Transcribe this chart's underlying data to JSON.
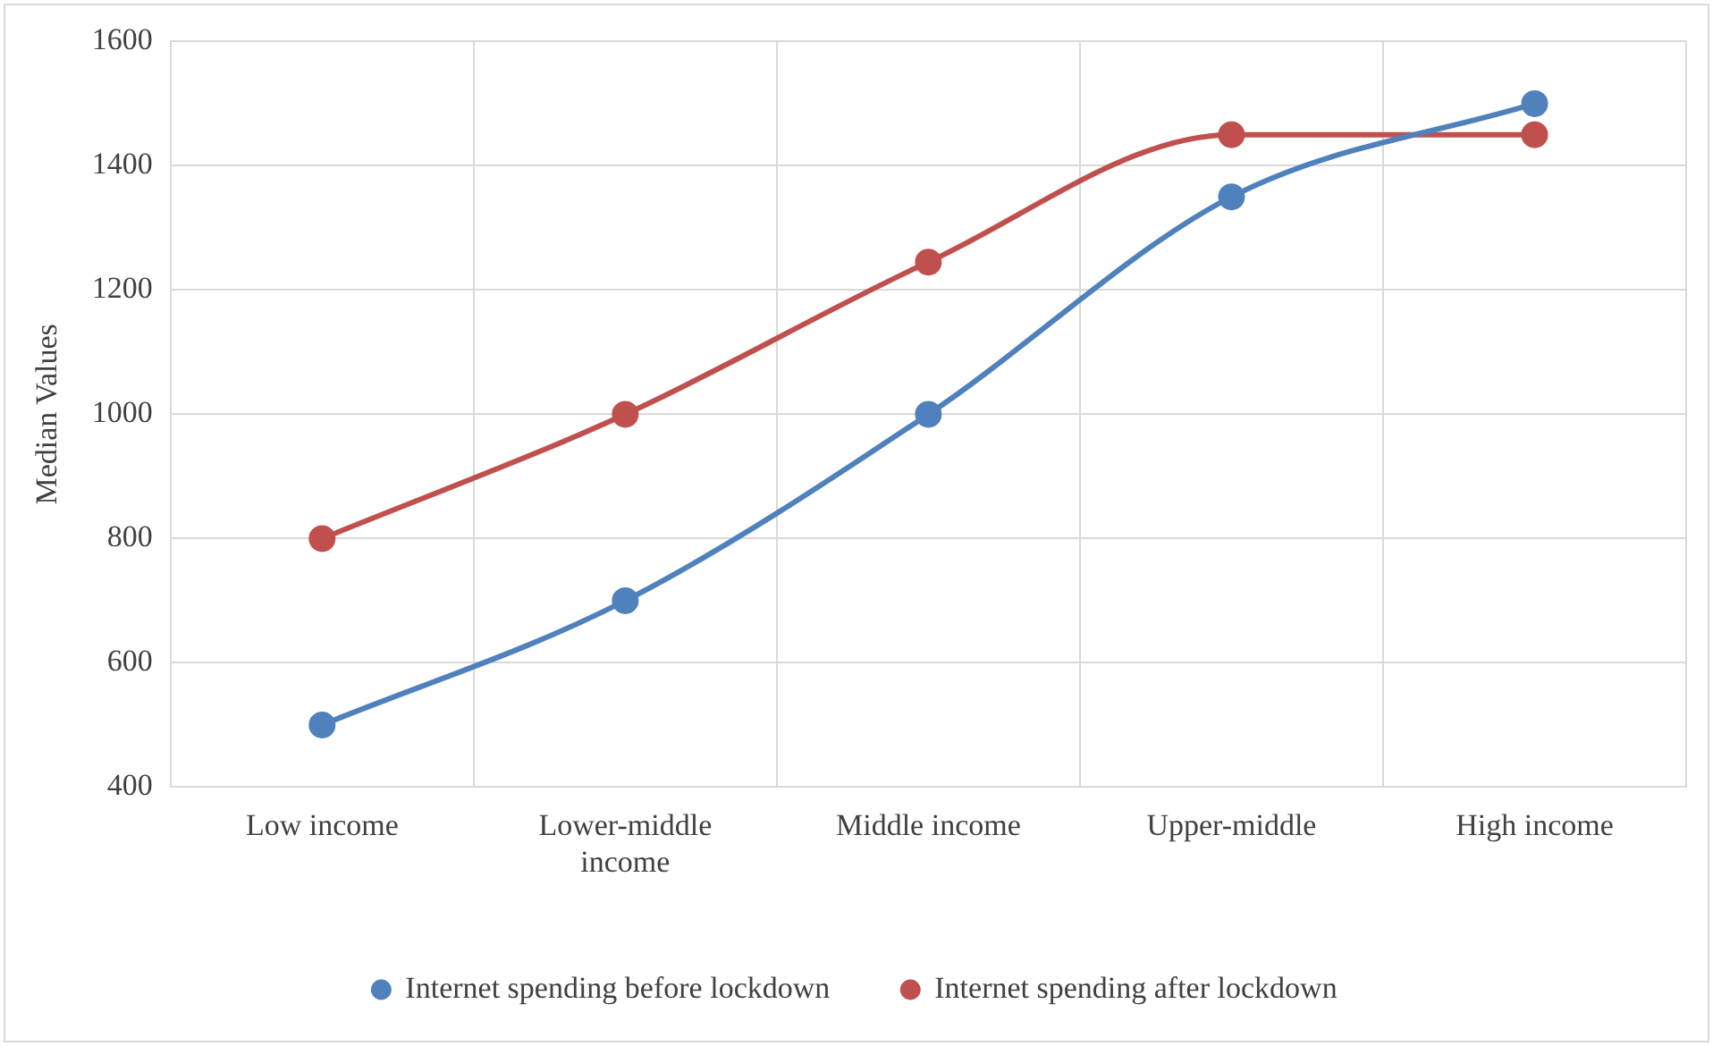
{
  "chart_data": {
    "type": "line",
    "ylabel": "Median Values",
    "categories": [
      "Low income",
      "Lower-middle\nincome",
      "Middle income",
      "Upper-middle",
      "High income"
    ],
    "series": [
      {
        "name": "Internet spending before lockdown",
        "color": "#4f81bd",
        "values": [
          500,
          700,
          1000,
          1350,
          1500
        ]
      },
      {
        "name": "Internet spending after lockdown",
        "color": "#c0504d",
        "values": [
          800,
          1000,
          1245,
          1450,
          1450
        ]
      }
    ],
    "ylim": [
      400,
      1600
    ],
    "yticks": [
      400,
      600,
      800,
      1000,
      1200,
      1400,
      1600
    ],
    "grid": true,
    "legend": "bottom",
    "marker": "circle",
    "line_style": "solid"
  }
}
